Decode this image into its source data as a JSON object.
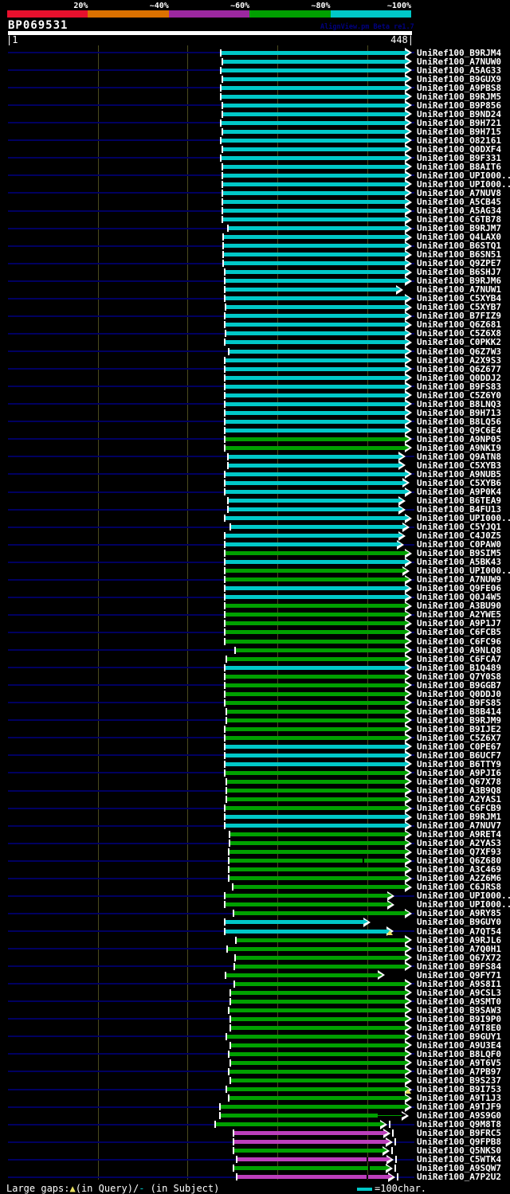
{
  "header": {
    "query_name": "BP069531",
    "watermark": "AlignView.pm Beta re1.7"
  },
  "scale": {
    "labels": [
      "20%",
      "~40%",
      "~60%",
      "~80%",
      "~100%"
    ],
    "colors": [
      "#e8102d",
      "#db7100",
      "#9c28a0",
      "#00a000",
      "#00c8c8"
    ]
  },
  "ruler": {
    "left_label": "|1",
    "right_label": "448|"
  },
  "legend": {
    "prefix": "Large gaps:",
    "query_symbol": "▲",
    "query_text": "(in Query)/",
    "subject_symbol": "-",
    "subject_text": " (in Subject)",
    "scale_label": "=100char.",
    "symbol_colors": {
      "query": "#e8e060",
      "subject": "#00c8c8"
    }
  },
  "colors": {
    "c": "#00c8c8",
    "g": "#00a000",
    "m": "#bc3fbc",
    "y": "#e8e060"
  },
  "plot": {
    "row_y0": 66,
    "row_dy": 11.03,
    "grid_x": [
      123,
      235,
      348,
      461
    ],
    "grid_color": "#4a4a1e",
    "line_color": "#000060"
  },
  "chart_data": {
    "type": "bar",
    "orientation": "horizontal",
    "title": "BP069531",
    "x_range": [
      1,
      448
    ],
    "units": "x1/x2 in screen px; plot x=10..517 maps to residues 1..448",
    "identity_bins": {
      "c": "~100%",
      "g": "~80%",
      "m": "~60%"
    },
    "hit_prefix": "UniRef100_",
    "hits": [
      {
        "l": "B9RJM4",
        "c": "c",
        "a": 278,
        "b": 517
      },
      {
        "l": "A7NUW0",
        "c": "c",
        "a": 280,
        "b": 517
      },
      {
        "l": "A5AG33",
        "c": "c",
        "a": 278,
        "b": 517
      },
      {
        "l": "B9GUX9",
        "c": "c",
        "a": 280,
        "b": 517
      },
      {
        "l": "A9PBS8",
        "c": "c",
        "a": 278,
        "b": 517
      },
      {
        "l": "B9RJM5",
        "c": "c",
        "a": 278,
        "b": 517
      },
      {
        "l": "B9P856",
        "c": "c",
        "a": 280,
        "b": 517
      },
      {
        "l": "B9ND24",
        "c": "c",
        "a": 280,
        "b": 517
      },
      {
        "l": "B9H721",
        "c": "c",
        "a": 278,
        "b": 517
      },
      {
        "l": "B9H715",
        "c": "c",
        "a": 280,
        "b": 517
      },
      {
        "l": "O82161",
        "c": "c",
        "a": 278,
        "b": 517
      },
      {
        "l": "Q0DXF4",
        "c": "c",
        "a": 280,
        "b": 517
      },
      {
        "l": "B9F331",
        "c": "c",
        "a": 278,
        "b": 517
      },
      {
        "l": "B8AIT6",
        "c": "c",
        "a": 280,
        "b": 517
      },
      {
        "l": "UPI000..",
        "c": "c",
        "a": 280,
        "b": 517
      },
      {
        "l": "UPI000..",
        "c": "c",
        "a": 280,
        "b": 517
      },
      {
        "l": "A7NUV8",
        "c": "c",
        "a": 280,
        "b": 517
      },
      {
        "l": "A5CB45",
        "c": "c",
        "a": 280,
        "b": 517
      },
      {
        "l": "A5AG34",
        "c": "c",
        "a": 280,
        "b": 517
      },
      {
        "l": "C6TB78",
        "c": "c",
        "a": 280,
        "b": 517
      },
      {
        "l": "B9RJM7",
        "c": "c",
        "a": 287,
        "b": 517
      },
      {
        "l": "Q4LAX0",
        "c": "c",
        "a": 281,
        "b": 517
      },
      {
        "l": "B6STQ1",
        "c": "c",
        "a": 281,
        "b": 517
      },
      {
        "l": "B6SN51",
        "c": "c",
        "a": 281,
        "b": 517
      },
      {
        "l": "Q9ZPE7",
        "c": "c",
        "a": 281,
        "b": 517
      },
      {
        "l": "B6SHJ7",
        "c": "c",
        "a": 283,
        "b": 517
      },
      {
        "l": "B9RJM6",
        "c": "c",
        "a": 283,
        "b": 517
      },
      {
        "l": "A7NUW1",
        "c": "c",
        "a": 283,
        "b": 506
      },
      {
        "l": "C5XYB4",
        "c": "c",
        "a": 283,
        "b": 517
      },
      {
        "l": "C5XYB7",
        "c": "c",
        "a": 284,
        "b": 517
      },
      {
        "l": "B7FIZ9",
        "c": "c",
        "a": 283,
        "b": 517
      },
      {
        "l": "Q6Z681",
        "c": "c",
        "a": 283,
        "b": 517
      },
      {
        "l": "C5Z6X8",
        "c": "c",
        "a": 284,
        "b": 517
      },
      {
        "l": "C0PKK2",
        "c": "c",
        "a": 283,
        "b": 517
      },
      {
        "l": "Q6Z7W3",
        "c": "c",
        "a": 288,
        "b": 517
      },
      {
        "l": "A2X9S3",
        "c": "c",
        "a": 283,
        "b": 517
      },
      {
        "l": "Q6Z677",
        "c": "c",
        "a": 283,
        "b": 517
      },
      {
        "l": "Q0DDJ2",
        "c": "c",
        "a": 283,
        "b": 517
      },
      {
        "l": "B9FS83",
        "c": "c",
        "a": 283,
        "b": 517
      },
      {
        "l": "C5Z6Y0",
        "c": "c",
        "a": 283,
        "b": 517
      },
      {
        "l": "B8LNQ3",
        "c": "c",
        "a": 283,
        "b": 517
      },
      {
        "l": "B9H713",
        "c": "c",
        "a": 283,
        "b": 517
      },
      {
        "l": "B8LQ56",
        "c": "c",
        "a": 283,
        "b": 517
      },
      {
        "l": "Q9C6E4",
        "c": "c",
        "a": 283,
        "b": 517
      },
      {
        "l": "A9NP05",
        "c": "g",
        "a": 283,
        "b": 517
      },
      {
        "l": "A9NKI9",
        "c": "g",
        "a": 283,
        "b": 517
      },
      {
        "l": "Q9ATN8",
        "c": "c",
        "a": 287,
        "b": 509
      },
      {
        "l": "C5XYB3",
        "c": "c",
        "a": 287,
        "b": 509
      },
      {
        "l": "A9NUB5",
        "c": "c",
        "a": 283,
        "b": 517
      },
      {
        "l": "C5XYB6",
        "c": "c",
        "a": 283,
        "b": 514
      },
      {
        "l": "A9P0K4",
        "c": "c",
        "a": 283,
        "b": 517
      },
      {
        "l": "B6TEA9",
        "c": "c",
        "a": 287,
        "b": 509
      },
      {
        "l": "B4FU13",
        "c": "c",
        "a": 287,
        "b": 509
      },
      {
        "l": "UPI000..",
        "c": "c",
        "a": 283,
        "b": 517
      },
      {
        "l": "C5YJQ1",
        "c": "c",
        "a": 290,
        "b": 514
      },
      {
        "l": "C4J0Z5",
        "c": "c",
        "a": 283,
        "b": 509
      },
      {
        "l": "C0PAW0",
        "c": "c",
        "a": 283,
        "b": 507
      },
      {
        "l": "B9SIM5",
        "c": "g",
        "a": 283,
        "b": 517
      },
      {
        "l": "A5BK43",
        "c": "c",
        "a": 283,
        "b": 517
      },
      {
        "l": "UPI000..",
        "c": "g",
        "a": 283,
        "b": 514
      },
      {
        "l": "A7NUW9",
        "c": "g",
        "a": 283,
        "b": 517
      },
      {
        "l": "Q9FE06",
        "c": "c",
        "a": 283,
        "b": 517
      },
      {
        "l": "Q0J4W5",
        "c": "c",
        "a": 283,
        "b": 517
      },
      {
        "l": "A3BU90",
        "c": "g",
        "a": 283,
        "b": 517
      },
      {
        "l": "A2YWE5",
        "c": "g",
        "a": 283,
        "b": 517
      },
      {
        "l": "A9P1J7",
        "c": "g",
        "a": 283,
        "b": 517
      },
      {
        "l": "C6FCB5",
        "c": "g",
        "a": 283,
        "b": 517
      },
      {
        "l": "C6FC96",
        "c": "g",
        "a": 283,
        "b": 517
      },
      {
        "l": "A9NLQ8",
        "c": "g",
        "a": 296,
        "b": 517
      },
      {
        "l": "C6FCA7",
        "c": "g",
        "a": 285,
        "b": 517
      },
      {
        "l": "B1Q489",
        "c": "c",
        "a": 283,
        "b": 517
      },
      {
        "l": "Q7Y0S8",
        "c": "g",
        "a": 283,
        "b": 517
      },
      {
        "l": "B9GGB7",
        "c": "g",
        "a": 283,
        "b": 517
      },
      {
        "l": "Q0DDJ0",
        "c": "g",
        "a": 283,
        "b": 517
      },
      {
        "l": "B9FS85",
        "c": "g",
        "a": 283,
        "b": 517
      },
      {
        "l": "B8B414",
        "c": "g",
        "a": 285,
        "b": 517
      },
      {
        "l": "B9RJM9",
        "c": "g",
        "a": 285,
        "b": 517
      },
      {
        "l": "B9IJE2",
        "c": "g",
        "a": 283,
        "b": 517
      },
      {
        "l": "C5Z6X7",
        "c": "g",
        "a": 283,
        "b": 517
      },
      {
        "l": "C0PE67",
        "c": "c",
        "a": 283,
        "b": 517
      },
      {
        "l": "B6UCF7",
        "c": "c",
        "a": 283,
        "b": 517
      },
      {
        "l": "B6TTY9",
        "c": "c",
        "a": 283,
        "b": 517
      },
      {
        "l": "A9PJI6",
        "c": "g",
        "a": 283,
        "b": 517
      },
      {
        "l": "Q67X78",
        "c": "g",
        "a": 285,
        "b": 517
      },
      {
        "l": "A3B9Q8",
        "c": "g",
        "a": 285,
        "b": 517
      },
      {
        "l": "A2YAS1",
        "c": "g",
        "a": 285,
        "b": 517
      },
      {
        "l": "C6FCB9",
        "c": "g",
        "a": 283,
        "b": 517
      },
      {
        "l": "B9RJM1",
        "c": "c",
        "a": 283,
        "b": 517
      },
      {
        "l": "A7NUV7",
        "c": "c",
        "a": 283,
        "b": 517
      },
      {
        "l": "A9RET4",
        "c": "g",
        "a": 289,
        "b": 517
      },
      {
        "l": "A2YAS3",
        "c": "g",
        "a": 289,
        "b": 517
      },
      {
        "l": "Q7XF93",
        "c": "g",
        "a": 288,
        "b": 517
      },
      {
        "l": "Q6Z680",
        "c": "g",
        "a": 288,
        "b": 517,
        "n": 455
      },
      {
        "l": "A3C469",
        "c": "g",
        "a": 288,
        "b": 517
      },
      {
        "l": "A2Z6M6",
        "c": "g",
        "a": 288,
        "b": 517
      },
      {
        "l": "C6JRS8",
        "c": "g",
        "a": 293,
        "b": 517
      },
      {
        "l": "UPI000..",
        "c": "g",
        "a": 283,
        "b": 495
      },
      {
        "l": "UPI000..",
        "c": "g",
        "a": 283,
        "b": 495
      },
      {
        "l": "A9RY85",
        "c": "g",
        "a": 294,
        "b": 517
      },
      {
        "l": "B9GUY0",
        "c": "c",
        "a": 283,
        "b": 465
      },
      {
        "l": "A7QT54",
        "c": "c",
        "a": 283,
        "b": 494,
        "y": 489
      },
      {
        "l": "A9RJL6",
        "c": "g",
        "a": 297,
        "b": 517
      },
      {
        "l": "A7Q0H1",
        "c": "g",
        "a": 286,
        "b": 517
      },
      {
        "l": "Q67X72",
        "c": "g",
        "a": 296,
        "b": 517
      },
      {
        "l": "B9FS84",
        "c": "g",
        "a": 295,
        "b": 517
      },
      {
        "l": "Q9FY71",
        "c": "g",
        "a": 284,
        "b": 483
      },
      {
        "l": "A9S8I1",
        "c": "g",
        "a": 295,
        "b": 517
      },
      {
        "l": "A9CSL3",
        "c": "g",
        "a": 290,
        "b": 517
      },
      {
        "l": "A9SMT0",
        "c": "g",
        "a": 290,
        "b": 517
      },
      {
        "l": "B9SAW3",
        "c": "g",
        "a": 288,
        "b": 517
      },
      {
        "l": "B9I9P0",
        "c": "g",
        "a": 290,
        "b": 517
      },
      {
        "l": "A9T8E0",
        "c": "g",
        "a": 290,
        "b": 517
      },
      {
        "l": "B9GUY1",
        "c": "g",
        "a": 285,
        "b": 517
      },
      {
        "l": "A9U3E4",
        "c": "g",
        "a": 290,
        "b": 517
      },
      {
        "l": "B8LQF0",
        "c": "g",
        "a": 288,
        "b": 517
      },
      {
        "l": "A9T6V5",
        "c": "g",
        "a": 290,
        "b": 517
      },
      {
        "l": "A7PB97",
        "c": "g",
        "a": 288,
        "b": 517
      },
      {
        "l": "B9S237",
        "c": "g",
        "a": 290,
        "b": 517
      },
      {
        "l": "B9I753",
        "c": "g",
        "a": 285,
        "b": 517,
        "y": 512
      },
      {
        "l": "A9T1J3",
        "c": "g",
        "a": 288,
        "b": 517
      },
      {
        "l": "A9TJF9",
        "c": "g",
        "a": 277,
        "b": 517
      },
      {
        "l": "A9S9G0",
        "c": "g",
        "a": 277,
        "b": 513,
        "t": 474,
        "o": 1
      },
      {
        "l": "Q9M8T8",
        "c": "g",
        "a": 271,
        "b": 486,
        "e": 1
      },
      {
        "l": "B9FRC5",
        "c": "m",
        "a": 294,
        "b": 490,
        "e": 1
      },
      {
        "l": "Q9FPB8",
        "c": "m",
        "a": 294,
        "b": 493,
        "e": 1
      },
      {
        "l": "Q5NKS0",
        "c": "g",
        "a": 294,
        "b": 489,
        "e": 1
      },
      {
        "l": "C5WTK4",
        "c": "m",
        "a": 298,
        "b": 494,
        "n": 460,
        "e": 1
      },
      {
        "l": "A9SQW7",
        "c": "g",
        "a": 294,
        "b": 493,
        "n": 462,
        "e": 1
      },
      {
        "l": "A7P2U2",
        "c": "m",
        "a": 298,
        "b": 496,
        "n": 460,
        "e": 1
      }
    ]
  }
}
